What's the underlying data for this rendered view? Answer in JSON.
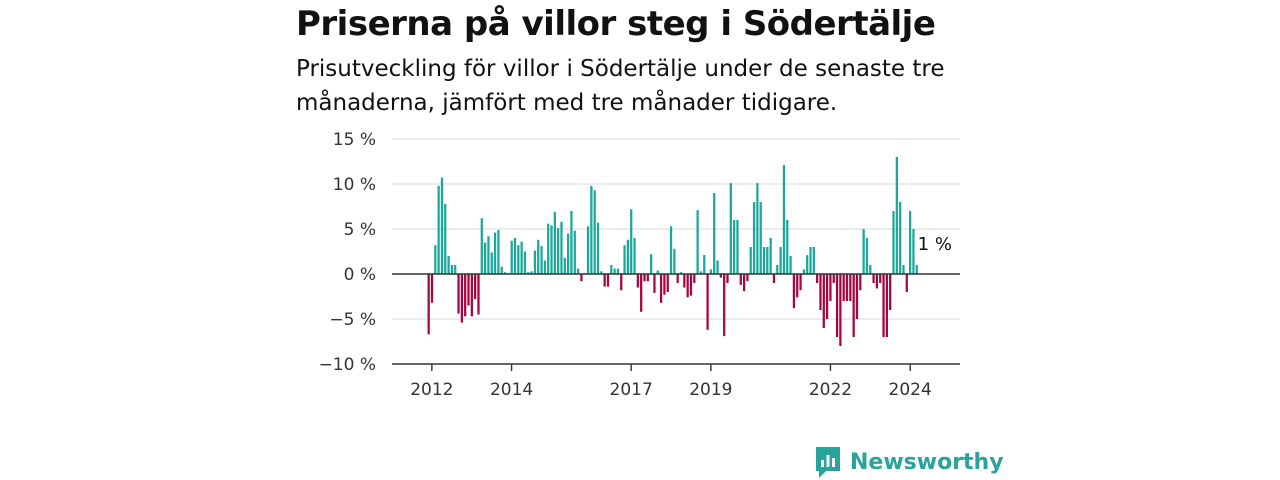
{
  "title": "Priserna på villor steg i Södertälje",
  "subtitle": "Prisutveckling för villor i Södertälje under de senaste tre månaderna, jämfört med tre månader tidigare.",
  "brand": "Newsworthy",
  "colors": {
    "positive": "#1aa89a",
    "negative": "#a6063f",
    "grid": "#d9d9d9",
    "zero": "#333333",
    "brand": "#29a39b"
  },
  "chart_data": {
    "type": "bar",
    "ylim": [
      -10,
      15
    ],
    "yticks": [
      15,
      10,
      5,
      0,
      -5,
      -10
    ],
    "ytick_labels": [
      "15 %",
      "10 %",
      "5 %",
      "0 %",
      "−5 %",
      "−10 %"
    ],
    "xticks": [
      2012,
      2014,
      2017,
      2019,
      2022,
      2024
    ],
    "xtick_labels": [
      "2012",
      "2014",
      "2017",
      "2019",
      "2022",
      "2024"
    ],
    "annotation": "1 %",
    "grid": true,
    "x_start": 2011.92,
    "step": 0.0833,
    "values": [
      -6.7,
      -3.2,
      3.2,
      9.8,
      10.7,
      7.8,
      2.0,
      1.0,
      1.0,
      -4.4,
      -5.4,
      -4.7,
      -3.5,
      -4.7,
      -2.8,
      -4.5,
      6.2,
      3.5,
      4.2,
      2.4,
      4.6,
      4.9,
      0.8,
      0.2,
      0.1,
      3.7,
      4.0,
      3.2,
      3.6,
      2.5,
      0.2,
      0.3,
      2.6,
      3.8,
      3.1,
      1.5,
      5.6,
      5.4,
      6.9,
      5.1,
      5.8,
      1.8,
      4.5,
      7.0,
      4.8,
      0.6,
      -0.8,
      0.1,
      5.3,
      9.8,
      9.3,
      5.7,
      0.3,
      -1.4,
      -1.4,
      1.0,
      0.6,
      0.6,
      -1.8,
      3.2,
      3.8,
      7.2,
      4.0,
      -1.5,
      -4.2,
      -0.8,
      -0.8,
      2.2,
      -2.1,
      0.4,
      -3.2,
      -2.3,
      -2.0,
      5.3,
      2.8,
      -1.0,
      0.2,
      -1.5,
      -2.6,
      -2.4,
      -1.0,
      7.1,
      0.3,
      2.1,
      -6.2,
      0.5,
      9.0,
      1.5,
      -0.4,
      -6.9,
      -1.0,
      10.1,
      6.0,
      6.0,
      -1.2,
      -1.9,
      -0.8,
      3.0,
      8.0,
      10.1,
      8.0,
      3.0,
      3.0,
      4.0,
      -1.0,
      1.0,
      3.0,
      12.1,
      6.0,
      2.0,
      -3.8,
      -2.6,
      -1.8,
      0.5,
      2.1,
      3.0,
      3.0,
      -1.0,
      -4.0,
      -6.0,
      -5.0,
      -3.0,
      -1.0,
      -7.0,
      -8.0,
      -3.0,
      -3.0,
      -3.0,
      -7.0,
      -5.0,
      -1.8,
      5.0,
      4.0,
      1.0,
      -1.0,
      -1.6,
      -1.0,
      -7.0,
      -7.0,
      -4.0,
      7.0,
      13.0,
      8.0,
      1.0,
      -2.0,
      7.0,
      5.0,
      1.0
    ]
  }
}
